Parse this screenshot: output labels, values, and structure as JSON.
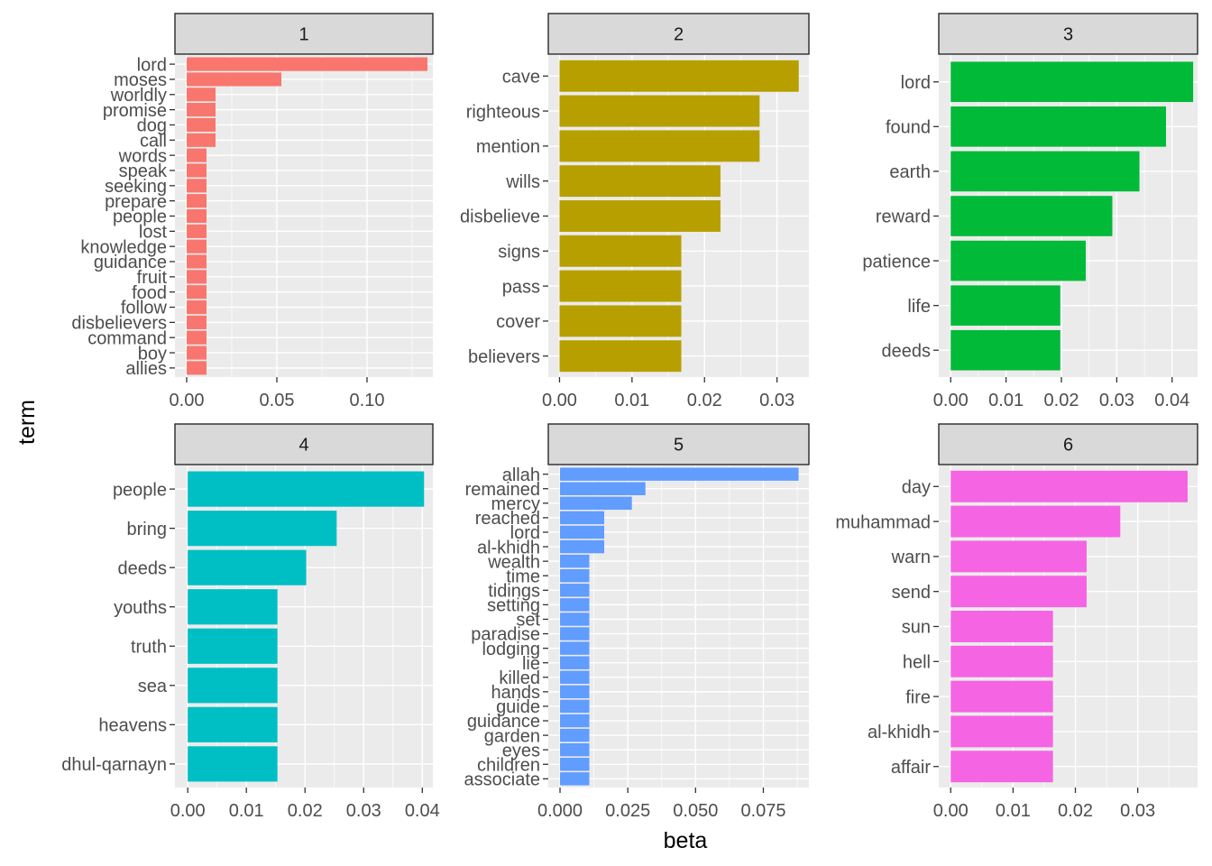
{
  "chart_data": {
    "type": "bar",
    "orientation": "horizontal",
    "xlabel": "beta",
    "ylabel": "term",
    "facet_colors": [
      "#F8766D",
      "#B79F00",
      "#00BA38",
      "#00BFC4",
      "#619CFF",
      "#F564E3"
    ],
    "panels": [
      {
        "label": "1",
        "xlim": [
          -0.0065,
          0.1365
        ],
        "xticks": [
          0,
          0.05,
          0.1
        ],
        "xtick_labels": [
          "0.00",
          "0.05",
          "0.10"
        ],
        "terms": [
          "lord",
          "moses",
          "worldly",
          "promise",
          "dog",
          "call",
          "words",
          "speak",
          "seeking",
          "prepare",
          "people",
          "lost",
          "knowledge",
          "guidance",
          "fruit",
          "food",
          "follow",
          "disbelievers",
          "command",
          "boy",
          "allies"
        ],
        "values": [
          0.1335,
          0.0525,
          0.016,
          0.016,
          0.016,
          0.016,
          0.011,
          0.011,
          0.011,
          0.011,
          0.011,
          0.011,
          0.011,
          0.011,
          0.011,
          0.011,
          0.011,
          0.011,
          0.011,
          0.011,
          0.011
        ]
      },
      {
        "label": "2",
        "xlim": [
          -0.00155,
          0.0344
        ],
        "xticks": [
          0,
          0.01,
          0.02,
          0.03
        ],
        "xtick_labels": [
          "0.00",
          "0.01",
          "0.02",
          "0.03"
        ],
        "terms": [
          "cave",
          "righteous",
          "mention",
          "wills",
          "disbelieve",
          "signs",
          "pass",
          "cover",
          "believers"
        ],
        "values": [
          0.033,
          0.0276,
          0.0276,
          0.0222,
          0.0222,
          0.0168,
          0.0168,
          0.0168,
          0.0168
        ]
      },
      {
        "label": "3",
        "xlim": [
          -0.00216,
          0.0446
        ],
        "xticks": [
          0,
          0.01,
          0.02,
          0.03,
          0.04
        ],
        "xtick_labels": [
          "0.00",
          "0.01",
          "0.02",
          "0.03",
          "0.04"
        ],
        "terms": [
          "lord",
          "found",
          "earth",
          "reward",
          "patience",
          "life",
          "deeds"
        ],
        "values": [
          0.0438,
          0.0389,
          0.0341,
          0.0292,
          0.0244,
          0.0198,
          0.0198
        ]
      },
      {
        "label": "4",
        "xlim": [
          -0.00218,
          0.0418
        ],
        "xticks": [
          0,
          0.01,
          0.02,
          0.03,
          0.04
        ],
        "xtick_labels": [
          "0.00",
          "0.01",
          "0.02",
          "0.03",
          "0.04"
        ],
        "terms": [
          "people",
          "bring",
          "deeds",
          "youths",
          "truth",
          "sea",
          "heavens",
          "dhul-qarnayn"
        ],
        "values": [
          0.0403,
          0.0254,
          0.0202,
          0.0153,
          0.0153,
          0.0153,
          0.0153,
          0.0153
        ]
      },
      {
        "label": "5",
        "xlim": [
          -0.00433,
          0.0918
        ],
        "xticks": [
          0,
          0.025,
          0.05,
          0.075
        ],
        "xtick_labels": [
          "0.000",
          "0.025",
          "0.050",
          "0.075"
        ],
        "terms": [
          "allah",
          "remained",
          "mercy",
          "reached",
          "lord",
          "al-khidh",
          "wealth",
          "time",
          "tidings",
          "setting",
          "set",
          "paradise",
          "lodging",
          "lie",
          "killed",
          "hands",
          "guide",
          "guidance",
          "garden",
          "eyes",
          "children",
          "associate"
        ],
        "values": [
          0.088,
          0.0315,
          0.0265,
          0.0163,
          0.0163,
          0.0163,
          0.0108,
          0.0108,
          0.0108,
          0.0108,
          0.0108,
          0.0108,
          0.0108,
          0.0108,
          0.0108,
          0.0108,
          0.0108,
          0.0108,
          0.0108,
          0.0108,
          0.0108,
          0.0108
        ]
      },
      {
        "label": "6",
        "xlim": [
          -0.00192,
          0.0396
        ],
        "xticks": [
          0,
          0.01,
          0.02,
          0.03
        ],
        "xtick_labels": [
          "0.00",
          "0.01",
          "0.02",
          "0.03"
        ],
        "terms": [
          "day",
          "muhammad",
          "warn",
          "send",
          "sun",
          "hell",
          "fire",
          "al-khidh",
          "affair"
        ],
        "values": [
          0.038,
          0.0272,
          0.0218,
          0.0218,
          0.0164,
          0.0164,
          0.0164,
          0.0164,
          0.0164
        ]
      }
    ]
  }
}
